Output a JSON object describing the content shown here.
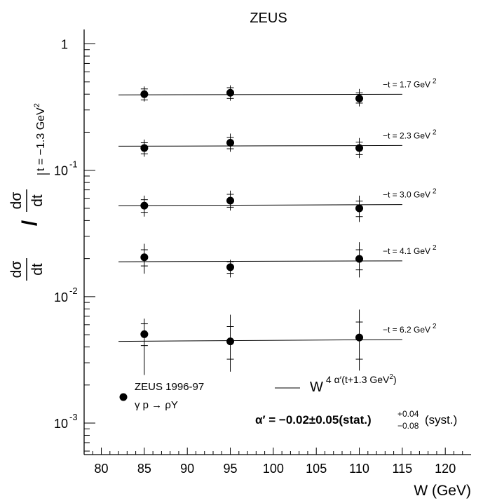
{
  "chart_data": {
    "type": "scatter",
    "title": "ZEUS",
    "xlabel": "W (GeV)",
    "ylabel": {
      "numerator": "dσ",
      "denominator": "dt",
      "slash": "/",
      "ref_numerator": "dσ",
      "ref_denominator": "dt",
      "ref_condition": "t = −1.3 GeV",
      "ref_exp": "2"
    },
    "xlim": [
      78,
      123
    ],
    "ylim": [
      0.000563,
      1.3
    ],
    "yscale": "log",
    "grid": false,
    "x_ticks": [
      "80",
      "85",
      "90",
      "95",
      "100",
      "105",
      "110",
      "115",
      "120"
    ],
    "y_ticks": [
      {
        "base": "1",
        "exp": ""
      },
      {
        "base": "10",
        "exp": "-1"
      },
      {
        "base": "10",
        "exp": "-2"
      },
      {
        "base": "10",
        "exp": "-3"
      }
    ],
    "series": [
      {
        "label_prefix": "−t = 1.7 GeV",
        "label_exp": "2",
        "x": [
          85,
          95,
          110
        ],
        "y": [
          0.4,
          0.41,
          0.37
        ],
        "stat_low": [
          0.36,
          0.37,
          0.34
        ],
        "stat_high": [
          0.44,
          0.45,
          0.41
        ],
        "tot_low": [
          0.35,
          0.355,
          0.32
        ],
        "tot_high": [
          0.46,
          0.47,
          0.44
        ],
        "fit": [
          0.395,
          0.399
        ]
      },
      {
        "label_prefix": "−t = 2.3 GeV",
        "label_exp": "2",
        "x": [
          85,
          95,
          110
        ],
        "y": [
          0.15,
          0.165,
          0.15
        ],
        "stat_low": [
          0.135,
          0.148,
          0.133
        ],
        "stat_high": [
          0.165,
          0.182,
          0.167
        ],
        "tot_low": [
          0.128,
          0.14,
          0.125
        ],
        "tot_high": [
          0.175,
          0.195,
          0.18
        ],
        "fit": [
          0.155,
          0.157
        ]
      },
      {
        "label_prefix": "−t = 3.0 GeV",
        "label_exp": "2",
        "x": [
          85,
          95,
          110
        ],
        "y": [
          0.0525,
          0.0575,
          0.05
        ],
        "stat_low": [
          0.0465,
          0.051,
          0.043
        ],
        "stat_high": [
          0.0585,
          0.0645,
          0.057
        ],
        "tot_low": [
          0.043,
          0.048,
          0.039
        ],
        "tot_high": [
          0.063,
          0.069,
          0.063
        ],
        "fit": [
          0.0525,
          0.0535
        ]
      },
      {
        "label_prefix": "−t = 4.1 GeV",
        "label_exp": "2",
        "x": [
          85,
          95,
          110
        ],
        "y": [
          0.0205,
          0.0171,
          0.0199
        ],
        "stat_low": [
          0.0175,
          0.0153,
          0.0163
        ],
        "stat_high": [
          0.0235,
          0.0189,
          0.0235
        ],
        "tot_low": [
          0.0152,
          0.0142,
          0.0142
        ],
        "tot_high": [
          0.0262,
          0.0196,
          0.027
        ],
        "fit": [
          0.0189,
          0.0192
        ]
      },
      {
        "label_prefix": "−t = 6.2 GeV",
        "label_exp": "2",
        "x": [
          85,
          95,
          110
        ],
        "y": [
          0.00505,
          0.00443,
          0.00475
        ],
        "stat_low": [
          0.0041,
          0.0032,
          0.0032
        ],
        "stat_high": [
          0.0061,
          0.0058,
          0.0063
        ],
        "tot_low": [
          0.0024,
          0.00255,
          0.0026
        ],
        "tot_high": [
          0.0067,
          0.0072,
          0.0079
        ],
        "fit": [
          0.00443,
          0.00458
        ]
      }
    ],
    "fit_x_range": [
      82,
      115
    ],
    "legend": {
      "position": "bottom",
      "marker_entry": {
        "line1": "ZEUS 1996-97",
        "line2": "γ p → ρY"
      },
      "line_entry": {
        "base": "W",
        "exp": "4 α′(t+1.3 GeV",
        "exp_sup": "2",
        "exp_close": ")"
      }
    },
    "annotation": {
      "alpha_text": "α′ = −0.02±0.05(stat.)",
      "sys_up": "+0.04",
      "sys_down": "−0.08",
      "sys_suffix": "(syst.)"
    }
  }
}
